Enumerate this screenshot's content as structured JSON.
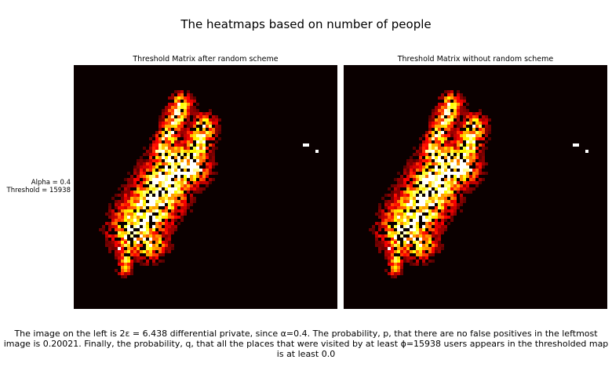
{
  "figure": {
    "title": "The heatmaps based on number of people",
    "row_label": {
      "alpha": "Alpha = 0.4",
      "threshold": "Threshold = 15938"
    },
    "caption": "The image on the left is 2ε = 6.438 differential private, since α=0.4. The probability, p, that there are no false positives in the leftmost image is 0.20021. Finally, the probability, q, that all the places that were visited by at least ϕ=15938 users appears in the thresholded map is at least 0.0"
  },
  "chart_data": [
    {
      "type": "heatmap",
      "title": "Threshold Matrix after random scheme",
      "colormap": "hot",
      "background": "#0a0000",
      "grid": false,
      "axes_visible": false,
      "description_note": "Grid cell intensities (0-1) over a map of visited places; hot colormap"
    },
    {
      "type": "heatmap",
      "title": "Threshold Matrix without random scheme",
      "colormap": "hot",
      "background": "#0a0000",
      "grid": false,
      "axes_visible": false
    }
  ]
}
